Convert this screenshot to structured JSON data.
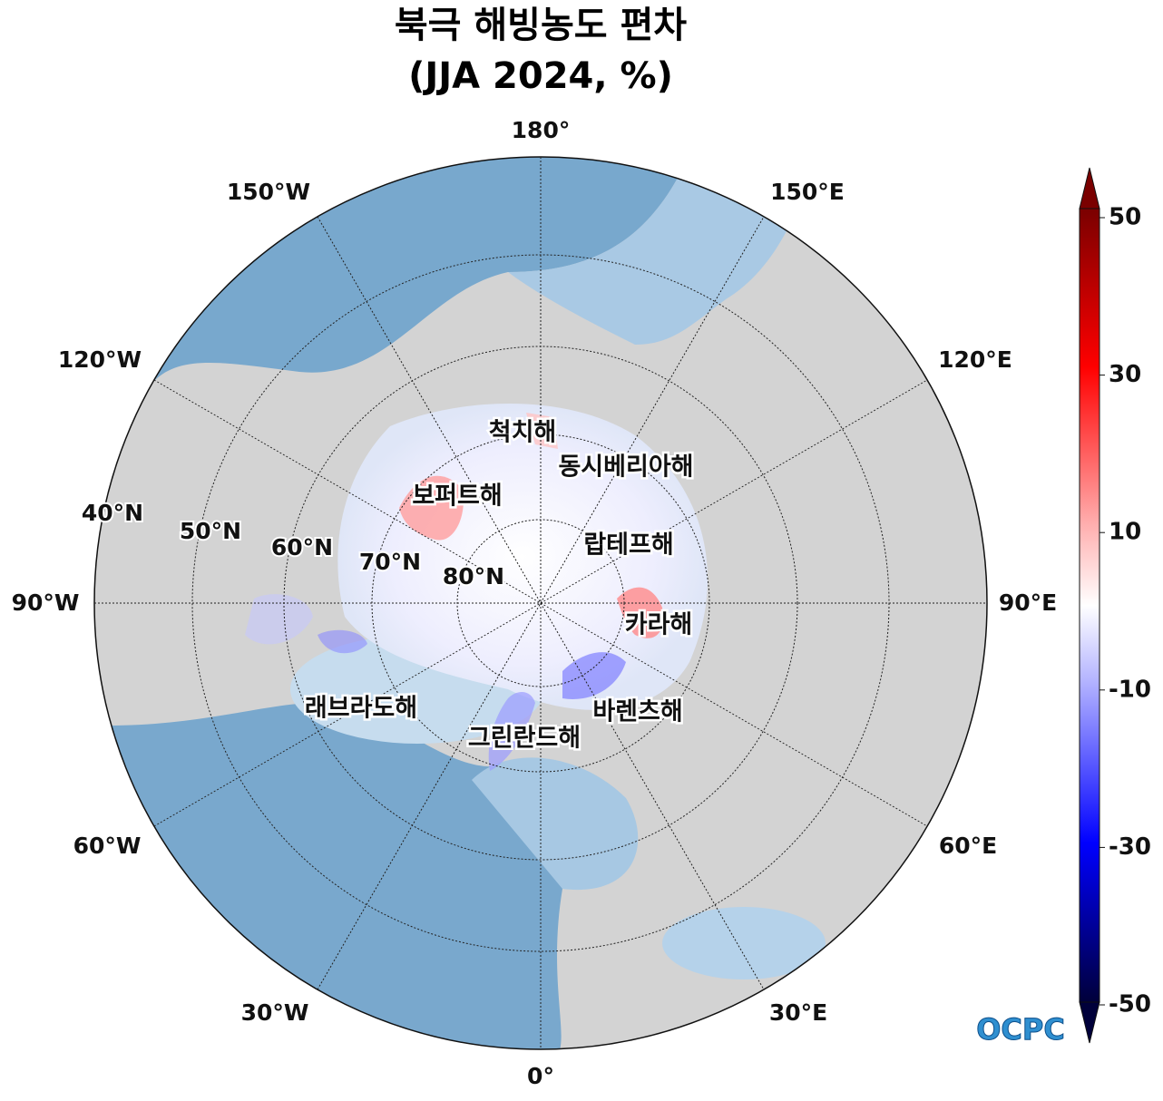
{
  "title": [
    "북극 해빙농도 편차",
    "(JJA 2024, %)"
  ],
  "longitude_labels": [
    "180°",
    "150°E",
    "120°E",
    "90°E",
    "60°E",
    "30°E",
    "0°",
    "30°W",
    "60°W",
    "90°W",
    "120°W",
    "150°W"
  ],
  "latitude_labels": [
    "40°N",
    "50°N",
    "60°N",
    "70°N",
    "80°N"
  ],
  "sea_labels": [
    "척치해",
    "동시베리아해",
    "보퍼트해",
    "랍테프해",
    "카라해",
    "바렌츠해",
    "래브라도해",
    "그린란드해"
  ],
  "colorbar": {
    "lim": [
      -50,
      50
    ],
    "ticks": [
      50,
      30,
      10,
      -10,
      -30,
      -50
    ]
  },
  "logo": "OCPC"
}
